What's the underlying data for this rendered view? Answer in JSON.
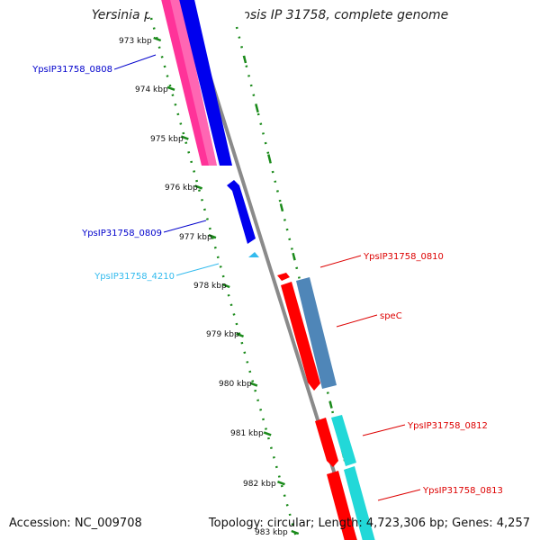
{
  "title": "Yersinia pseudotuberculosis IP 31758, complete genome",
  "footer": {
    "accession": "Accession: NC_009708",
    "topology": "Topology: circular; Length: 4,723,306 bp; Genes: 4,257"
  },
  "ticks": [
    "973 kbp",
    "974 kbp",
    "975 kbp",
    "976 kbp",
    "977 kbp",
    "978 kbp",
    "979 kbp",
    "980 kbp",
    "981 kbp",
    "982 kbp",
    "983 kbp"
  ],
  "gene_labels": [
    {
      "text": "YpsIP31758_0808",
      "color": "#0000cc"
    },
    {
      "text": "YpsIP31758_0809",
      "color": "#0000cc"
    },
    {
      "text": "YpsIP31758_4210",
      "color": "#33bbee"
    },
    {
      "text": "YpsIP31758_0810",
      "color": "#dd0000"
    },
    {
      "text": "speC",
      "color": "#dd0000"
    },
    {
      "text": "YpsIP31758_0812",
      "color": "#dd0000"
    },
    {
      "text": "YpsIP31758_0813",
      "color": "#dd0000"
    }
  ],
  "colors": {
    "backbone": "#8a8a8a",
    "tick": "#1a8a1a",
    "pink": "#ff3399",
    "blue": "#0000ee",
    "red": "#ff0000",
    "steelblue": "#4f86b8",
    "cyan": "#22d8d8",
    "lightblue": "#33bbee"
  }
}
